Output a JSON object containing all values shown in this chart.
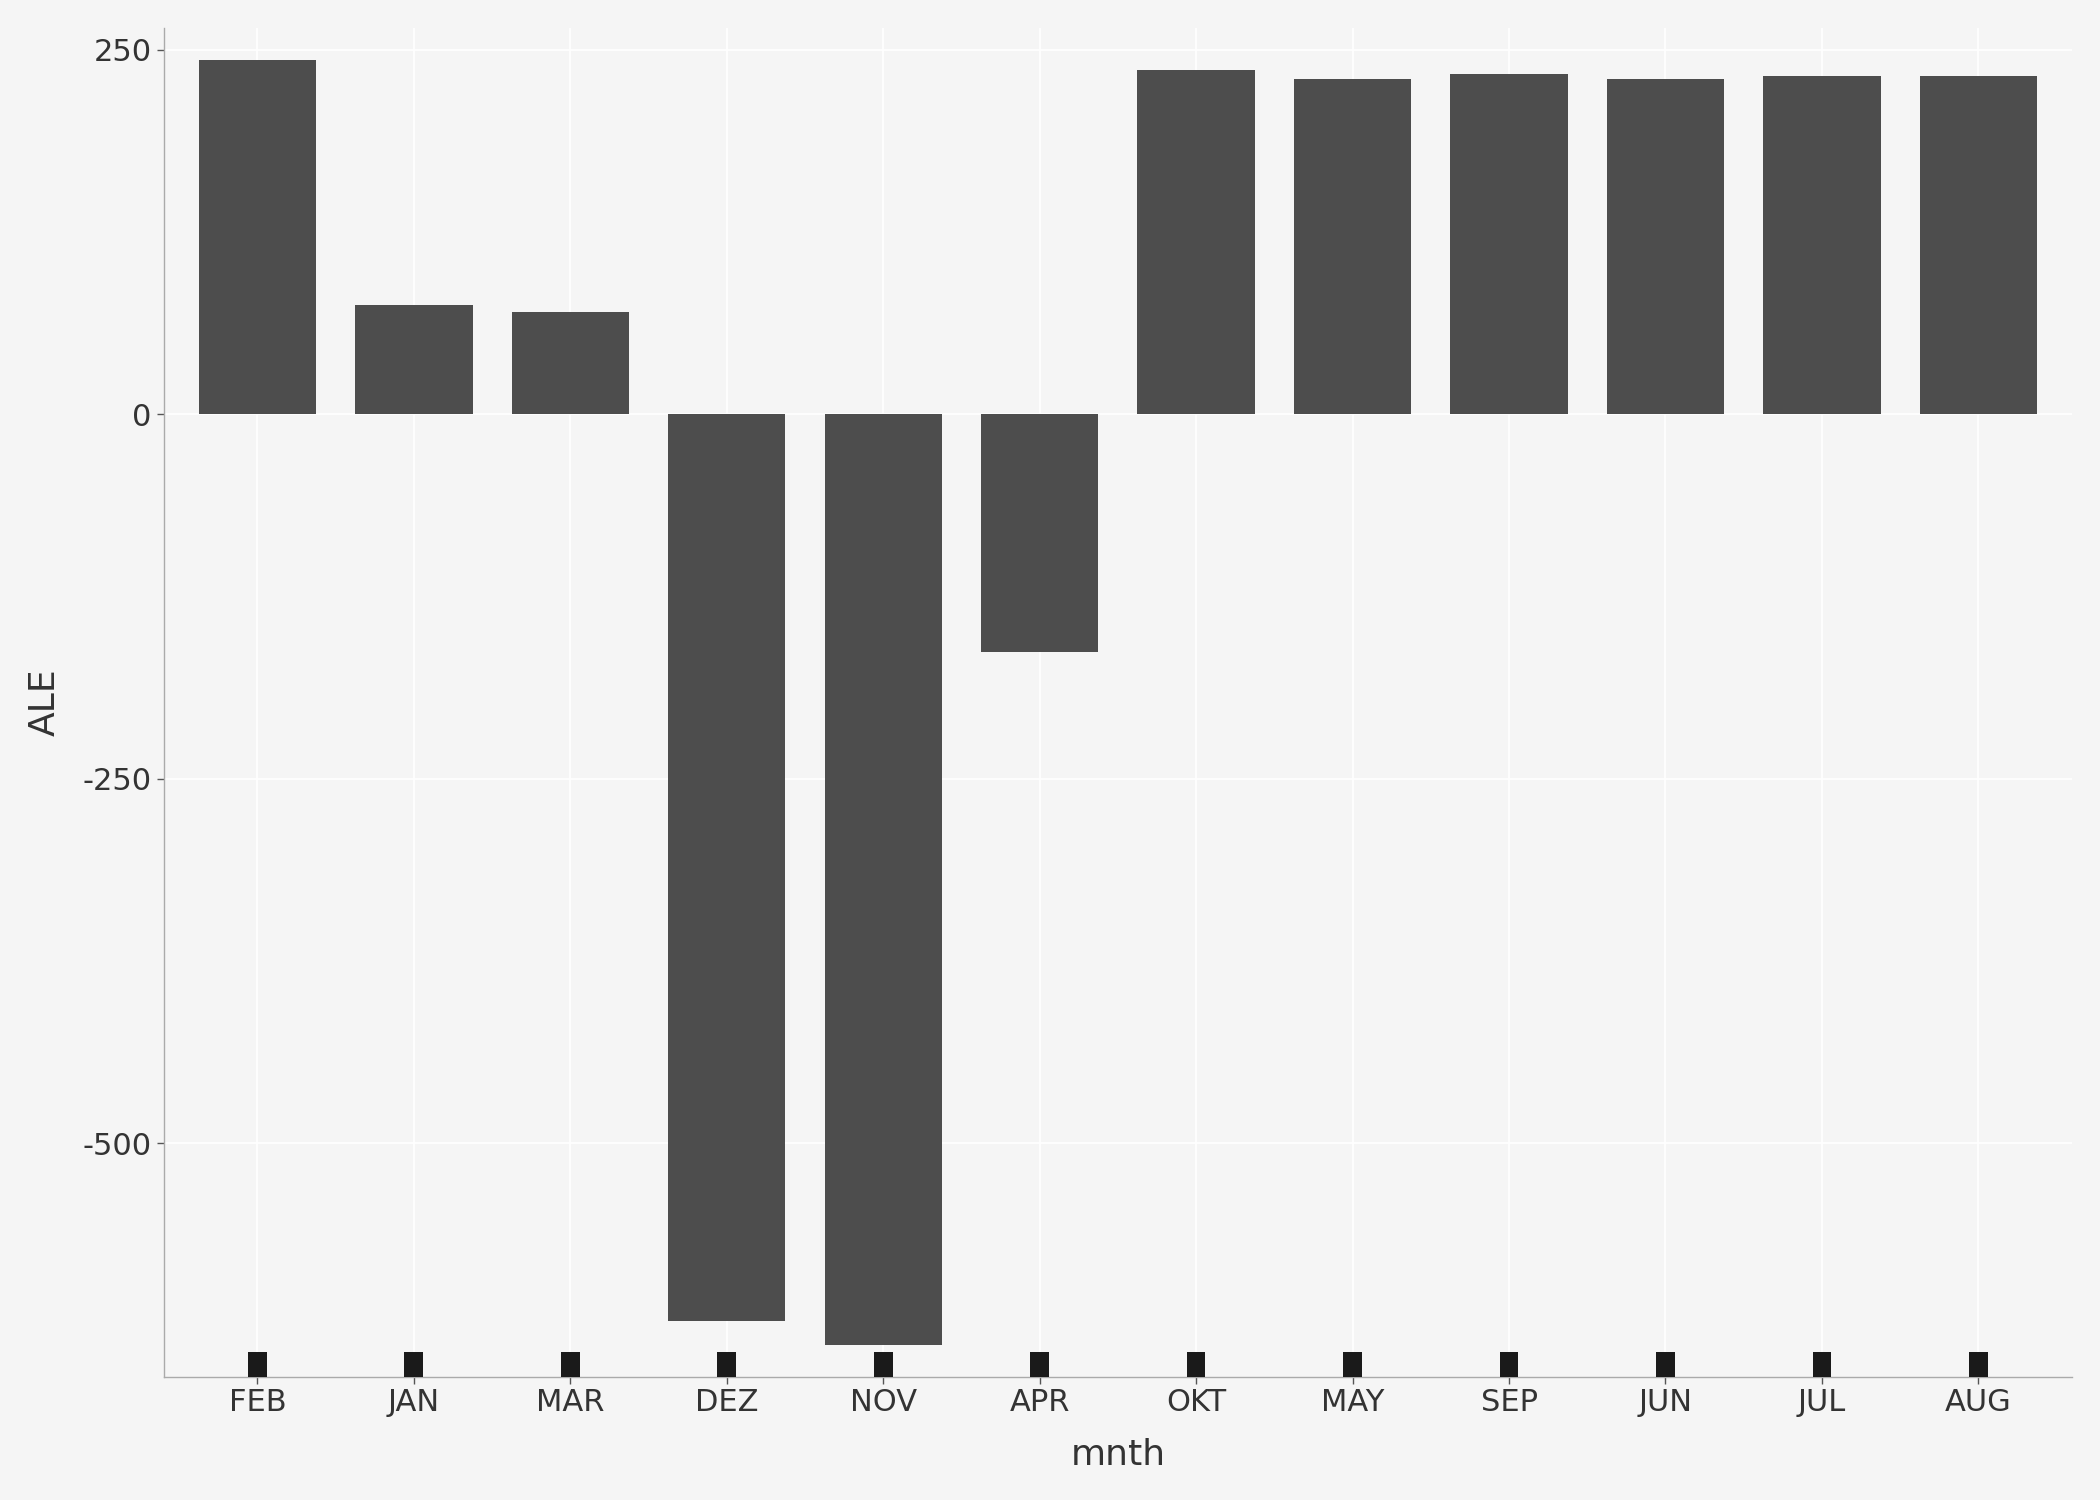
{
  "categories": [
    "FEB",
    "JAN",
    "MAR",
    "DEZ",
    "NOV",
    "APR",
    "OKT",
    "MAY",
    "SEP",
    "JUN",
    "JUL",
    "AUG"
  ],
  "values": [
    243,
    75,
    70,
    -622,
    -638,
    -163,
    236,
    230,
    233,
    230,
    232,
    232
  ],
  "bar_color": "#4d4d4d",
  "xlabel": "mnth",
  "ylabel": "ALE",
  "ylim": [
    -660,
    265
  ],
  "yticks": [
    250,
    0,
    -250,
    -500
  ],
  "background_color": "#f5f5f5",
  "plot_bg_color": "#f5f5f5",
  "grid_color": "#ffffff",
  "bar_width": 0.75,
  "tick_fontsize": 22,
  "label_fontsize": 26,
  "rug_color": "#1a1a1a"
}
